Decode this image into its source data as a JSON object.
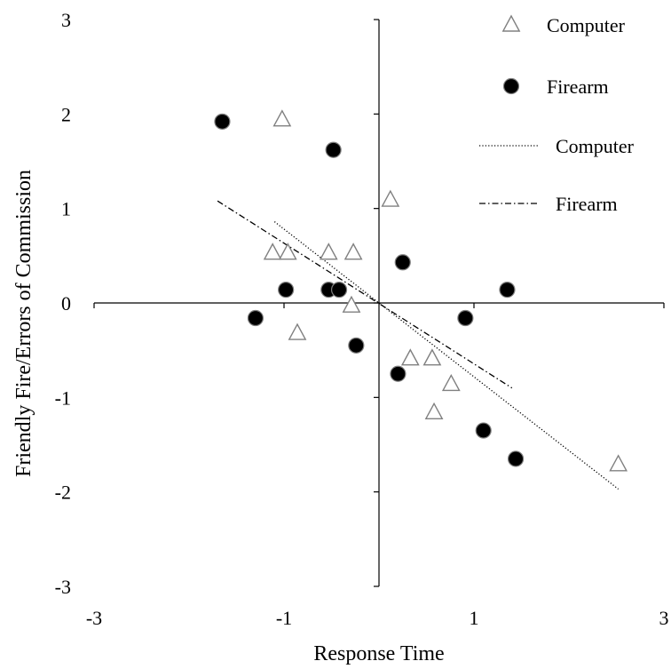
{
  "chart_data": {
    "type": "scatter",
    "title": "",
    "xlabel": "Response Time",
    "ylabel": "Friendly Fire/Errors of Commission",
    "xlim": [
      -3,
      3
    ],
    "ylim": [
      -3,
      3
    ],
    "xticks": [
      -3,
      -1,
      1,
      3
    ],
    "yticks": [
      -3,
      -2,
      -1,
      0,
      1,
      2,
      3
    ],
    "xtick_labels": [
      "-3",
      "-1",
      "1",
      "3"
    ],
    "ytick_labels": [
      "-3",
      "-2",
      "-1",
      "0",
      "1",
      "2",
      "3"
    ],
    "grid": false,
    "legend_position": "top-right",
    "series": [
      {
        "name": "Computer",
        "kind": "points",
        "marker": "open-triangle",
        "color": "#808080",
        "x": [
          -1.02,
          0.12,
          -1.12,
          -0.96,
          -0.53,
          -0.27,
          -0.29,
          -0.86,
          0.33,
          0.56,
          0.76,
          0.58,
          2.52
        ],
        "y": [
          1.94,
          1.09,
          0.53,
          0.53,
          0.53,
          0.53,
          -0.03,
          -0.32,
          -0.59,
          -0.59,
          -0.86,
          -1.16,
          -1.71
        ]
      },
      {
        "name": "Firearm",
        "kind": "points",
        "marker": "filled-circle",
        "color": "#000000",
        "x": [
          -1.65,
          -0.48,
          0.25,
          -0.98,
          -0.53,
          -0.42,
          -1.3,
          0.91,
          1.35,
          -0.24,
          0.2,
          1.1,
          1.44
        ],
        "y": [
          1.92,
          1.62,
          0.43,
          0.14,
          0.14,
          0.14,
          -0.16,
          -0.16,
          0.14,
          -0.45,
          -0.75,
          -1.35,
          -1.65
        ]
      },
      {
        "name": "Computer",
        "kind": "trendline",
        "dash": "dotted",
        "color": "#000000",
        "x": [
          -1.1,
          2.52
        ],
        "y": [
          0.86,
          -1.97
        ]
      },
      {
        "name": "Firearm",
        "kind": "trendline",
        "dash": "dash-dot",
        "color": "#000000",
        "x": [
          -1.7,
          1.4
        ],
        "y": [
          1.08,
          -0.9
        ]
      }
    ],
    "legend": [
      {
        "label": "Computer",
        "symbol": "open-triangle"
      },
      {
        "label": "Firearm",
        "symbol": "filled-circle"
      },
      {
        "label": "Computer",
        "symbol": "dotted-line"
      },
      {
        "label": "Firearm",
        "symbol": "dash-dot-line"
      }
    ]
  }
}
